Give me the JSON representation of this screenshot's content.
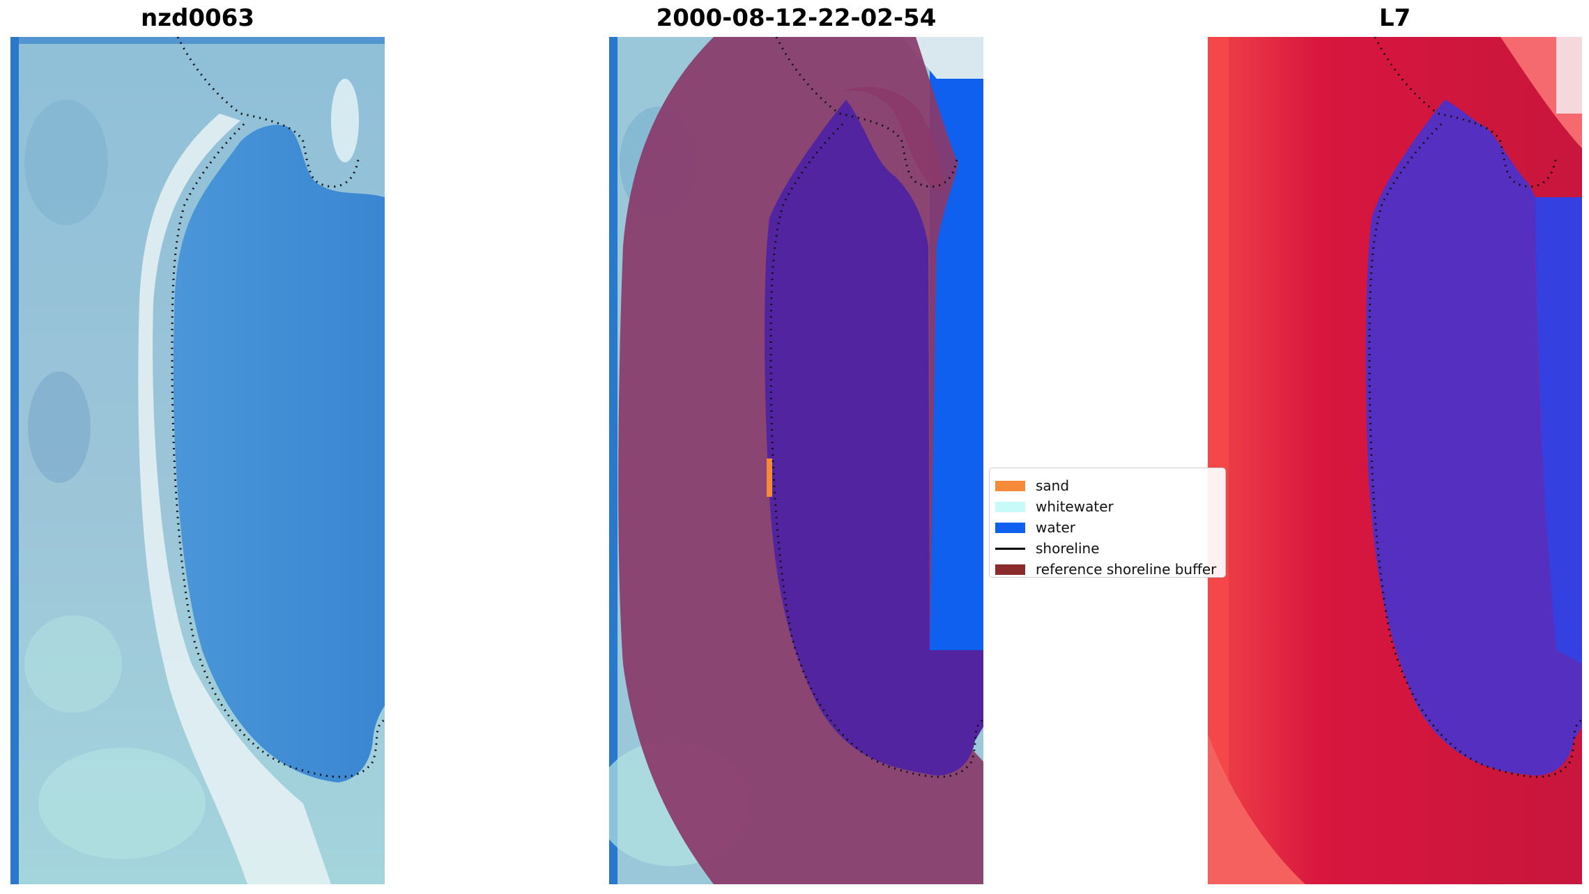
{
  "panels": [
    {
      "title": "nzd0063"
    },
    {
      "title": "2000-08-12-22-02-54"
    },
    {
      "title": "L7"
    }
  ],
  "legend": {
    "items": [
      {
        "label": "sand",
        "color": "#f58a3a",
        "kind": "patch"
      },
      {
        "label": "whitewater",
        "color": "#c8fafa",
        "kind": "patch"
      },
      {
        "label": "water",
        "color": "#1060f0",
        "kind": "patch"
      },
      {
        "label": "shoreline",
        "color": "#000000",
        "kind": "line"
      },
      {
        "label": "reference shoreline buffer",
        "color": "#8b2a2a",
        "kind": "patch"
      }
    ]
  },
  "colors": {
    "rgb_water": "#3a8ad6",
    "rgb_shallow": "#9cc8d8",
    "buffer_overlay": "#8a3a6a",
    "water_mask": "#5224a0",
    "mndwi_low": "#d8163e",
    "mndwi_high": "#f0444a",
    "mndwi_water": "#5530c0"
  }
}
